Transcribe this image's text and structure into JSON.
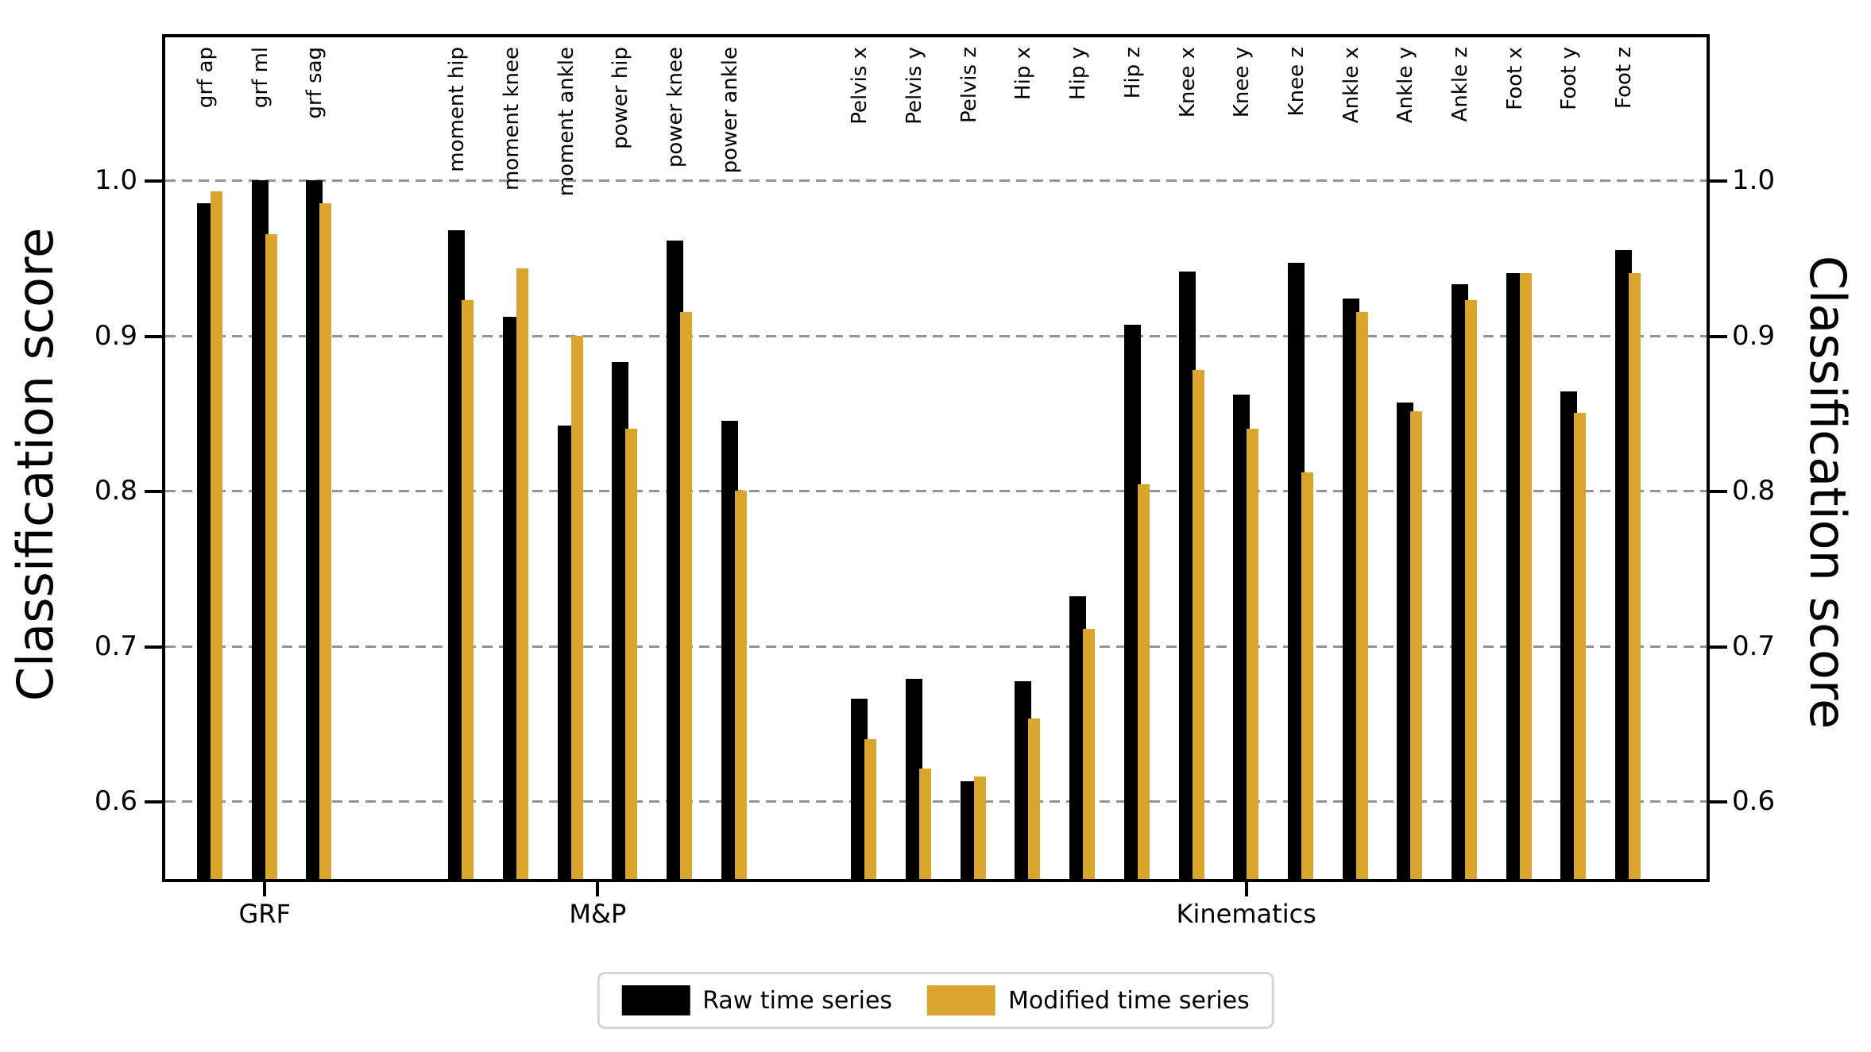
{
  "figure": {
    "left_axis_label": "Classification score",
    "right_axis_label": "Classification score"
  },
  "legend": {
    "items": [
      {
        "label": "Raw time series",
        "color": "#000000"
      },
      {
        "label": "Modified time series",
        "color": "#D9A52C"
      }
    ]
  },
  "chart_data": {
    "type": "bar",
    "title": "",
    "xlabel": "",
    "ylabel": "Classification score",
    "ylabel_right": "Classification score",
    "ylim": [
      0.55,
      1.09
    ],
    "yticks": [
      1.0,
      0.9,
      0.8,
      0.7,
      0.6
    ],
    "grid": "horizontal dashed gray lines at each ytick",
    "legend_position": "bottom center",
    "series_names": [
      "Raw time series",
      "Modified time series"
    ],
    "colors": {
      "raw": "#000000",
      "modified": "#D9A52C"
    },
    "groups": [
      {
        "name": "GRF",
        "categories": [
          "grf ap",
          "grf ml",
          "grf sag"
        ],
        "raw": [
          0.985,
          1.0,
          1.0
        ],
        "modified": [
          0.993,
          0.965,
          0.985
        ]
      },
      {
        "name": "M&P",
        "categories": [
          "moment hip",
          "moment knee",
          "moment ankle",
          "power hip",
          "power knee",
          "power ankle"
        ],
        "raw": [
          0.968,
          0.912,
          0.842,
          0.883,
          0.961,
          0.845
        ],
        "modified": [
          0.923,
          0.943,
          0.9,
          0.84,
          0.915,
          0.8
        ]
      },
      {
        "name": "Kinematics",
        "categories": [
          "Pelvis x",
          "Pelvis y",
          "Pelvis z",
          "Hip x",
          "Hip y",
          "Hip z",
          "Knee x",
          "Knee y",
          "Knee z",
          "Ankle x",
          "Ankle y",
          "Ankle z",
          "Foot x",
          "Foot y",
          "Foot z"
        ],
        "raw": [
          0.666,
          0.679,
          0.613,
          0.677,
          0.732,
          0.907,
          0.941,
          0.862,
          0.947,
          0.924,
          0.857,
          0.933,
          0.94,
          0.864,
          0.955
        ],
        "modified": [
          0.64,
          0.621,
          0.616,
          0.653,
          0.711,
          0.804,
          0.878,
          0.84,
          0.812,
          0.915,
          0.851,
          0.923,
          0.94,
          0.85,
          0.94
        ]
      }
    ]
  }
}
